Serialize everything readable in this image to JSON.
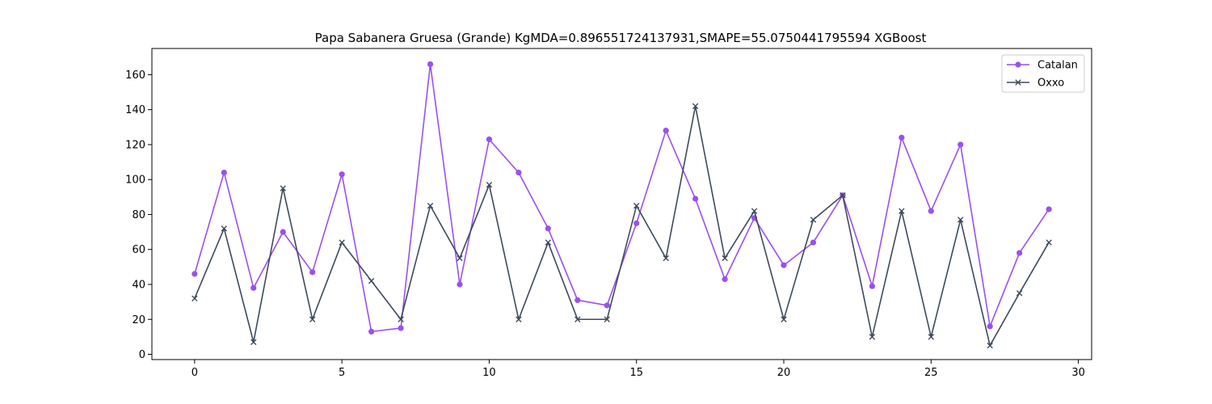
{
  "chart_data": {
    "type": "line",
    "title": "Papa Sabanera Gruesa (Grande) KgMDA=0.896551724137931,SMAPE=55.0750441795594 XGBoost",
    "xlabel": "",
    "ylabel": "",
    "xlim": [
      -1.45,
      30.45
    ],
    "ylim": [
      -3,
      175
    ],
    "x_ticks": [
      0,
      5,
      10,
      15,
      20,
      25,
      30
    ],
    "y_ticks": [
      0,
      20,
      40,
      60,
      80,
      100,
      120,
      140,
      160
    ],
    "grid": false,
    "legend_position": "top-right",
    "x": [
      0,
      1,
      2,
      3,
      4,
      5,
      6,
      7,
      8,
      9,
      10,
      11,
      12,
      13,
      14,
      15,
      16,
      17,
      18,
      19,
      20,
      21,
      22,
      23,
      24,
      25,
      26,
      27,
      28,
      29
    ],
    "series": [
      {
        "name": "Catalan",
        "color": "#9b4ff0",
        "marker": "circle",
        "values": [
          46,
          104,
          38,
          70,
          47,
          103,
          13,
          15,
          166,
          40,
          123,
          104,
          72,
          31,
          28,
          75,
          128,
          89,
          43,
          78,
          51,
          64,
          91,
          39,
          124,
          82,
          120,
          16,
          58,
          83
        ]
      },
      {
        "name": "Oxxo",
        "color": "#3d4a5c",
        "marker": "x",
        "values": [
          32,
          72,
          7,
          95,
          20,
          64,
          42,
          20,
          85,
          55,
          97,
          20,
          64,
          20,
          20,
          85,
          55,
          142,
          55,
          82,
          20,
          77,
          91,
          10,
          82,
          10,
          77,
          5,
          35,
          64
        ]
      }
    ]
  }
}
